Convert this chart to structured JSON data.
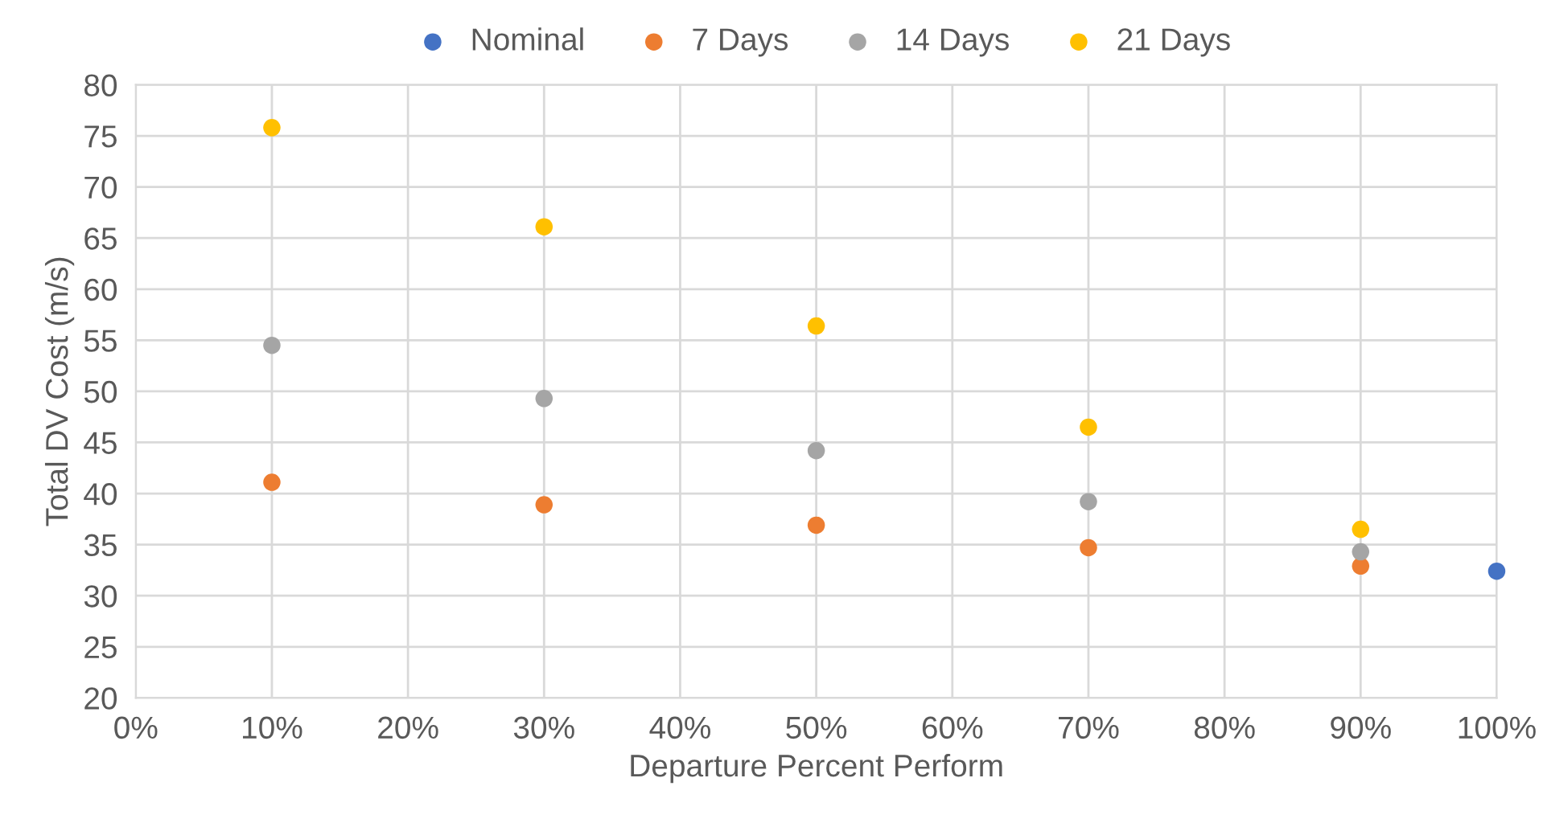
{
  "chart_data": {
    "type": "scatter",
    "xlabel": "Departure Percent Perform",
    "ylabel": "Total DV Cost (m/s)",
    "series": [
      {
        "name": "Nominal",
        "color": "#4472c4",
        "x": [
          100
        ],
        "values": [
          32.4
        ]
      },
      {
        "name": "7 Days",
        "color": "#ed7d31",
        "x": [
          10,
          30,
          50,
          70,
          90
        ],
        "values": [
          41.1,
          38.9,
          36.9,
          34.7,
          32.9
        ]
      },
      {
        "name": "14 Days",
        "color": "#a5a5a5",
        "x": [
          10,
          30,
          50,
          70,
          90
        ],
        "values": [
          54.5,
          49.3,
          44.2,
          39.2,
          34.3
        ]
      },
      {
        "name": "21 Days",
        "color": "#ffc000",
        "x": [
          10,
          30,
          50,
          70,
          90
        ],
        "values": [
          75.8,
          66.1,
          56.4,
          46.5,
          36.5
        ]
      }
    ],
    "xlim": [
      0,
      100
    ],
    "xticks": [
      {
        "value": 0,
        "label": "0%"
      },
      {
        "value": 10,
        "label": "10%"
      },
      {
        "value": 20,
        "label": "20%"
      },
      {
        "value": 30,
        "label": "30%"
      },
      {
        "value": 40,
        "label": "40%"
      },
      {
        "value": 50,
        "label": "50%"
      },
      {
        "value": 60,
        "label": "60%"
      },
      {
        "value": 70,
        "label": "70%"
      },
      {
        "value": 80,
        "label": "80%"
      },
      {
        "value": 90,
        "label": "90%"
      },
      {
        "value": 100,
        "label": "100%"
      }
    ],
    "ylim": [
      20,
      80
    ],
    "yticks": [
      20,
      25,
      30,
      35,
      40,
      45,
      50,
      55,
      60,
      65,
      70,
      75,
      80
    ],
    "grid": true,
    "legend": "top",
    "marker": "circle"
  }
}
